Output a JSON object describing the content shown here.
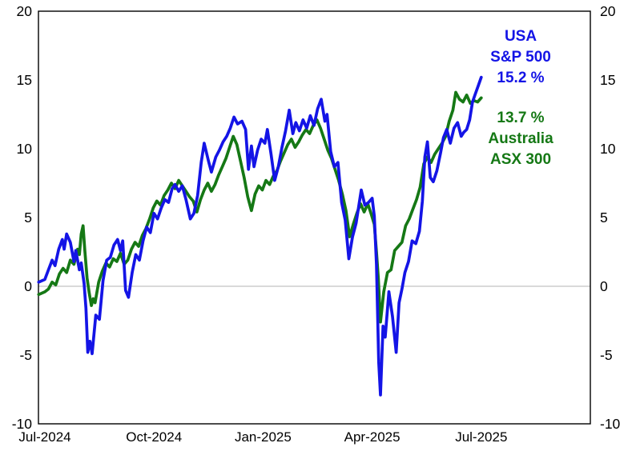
{
  "window": {
    "background": "#ffffff"
  },
  "chart_data": {
    "type": "line",
    "title": "",
    "x_axis": {
      "tick_labels": [
        "Jul-2024",
        "Oct-2024",
        "Jan-2025",
        "Apr-2025",
        "Jul-2025"
      ],
      "tick_positions_months": [
        0,
        3,
        6,
        9,
        12
      ],
      "range_months": [
        -0.18,
        15.0
      ],
      "grid": false
    },
    "y_axis": {
      "min": -10,
      "max": 20,
      "ticks": [
        20,
        15,
        10,
        5,
        0,
        -5,
        -10
      ],
      "sides": [
        "left",
        "right"
      ],
      "unit": "%",
      "zero_line_color": "#d9d9d9"
    },
    "legend_position": "top-right-inside",
    "legend": {
      "usa_line1": "USA",
      "usa_line2": "S&P 500",
      "usa_value": "15.2 %",
      "aus_value": "13.7 %",
      "aus_line1": "Australia",
      "aus_line2": "ASX 300"
    },
    "series": [
      {
        "name": "USA S&P 500",
        "color": "#1414e6",
        "final_value_pct": 15.2,
        "points": [
          [
            -0.17,
            0.3
          ],
          [
            0.0,
            0.5
          ],
          [
            0.1,
            1.2
          ],
          [
            0.2,
            1.9
          ],
          [
            0.28,
            1.5
          ],
          [
            0.38,
            2.7
          ],
          [
            0.48,
            3.4
          ],
          [
            0.53,
            2.7
          ],
          [
            0.6,
            3.8
          ],
          [
            0.7,
            3.2
          ],
          [
            0.8,
            1.8
          ],
          [
            0.85,
            2.6
          ],
          [
            0.95,
            1.2
          ],
          [
            1.0,
            1.7
          ],
          [
            1.08,
            0.2
          ],
          [
            1.13,
            -1.6
          ],
          [
            1.18,
            -4.8
          ],
          [
            1.24,
            -4.0
          ],
          [
            1.3,
            -4.9
          ],
          [
            1.4,
            -2.1
          ],
          [
            1.5,
            -2.4
          ],
          [
            1.6,
            0.4
          ],
          [
            1.7,
            1.9
          ],
          [
            1.8,
            2.1
          ],
          [
            1.9,
            3.0
          ],
          [
            2.0,
            3.4
          ],
          [
            2.08,
            2.6
          ],
          [
            2.14,
            3.3
          ],
          [
            2.22,
            -0.3
          ],
          [
            2.3,
            -0.8
          ],
          [
            2.4,
            1.0
          ],
          [
            2.5,
            2.3
          ],
          [
            2.6,
            1.9
          ],
          [
            2.7,
            3.3
          ],
          [
            2.8,
            4.3
          ],
          [
            2.9,
            3.9
          ],
          [
            3.0,
            5.3
          ],
          [
            3.1,
            4.9
          ],
          [
            3.2,
            5.7
          ],
          [
            3.3,
            6.3
          ],
          [
            3.4,
            6.1
          ],
          [
            3.5,
            7.1
          ],
          [
            3.58,
            7.4
          ],
          [
            3.68,
            6.9
          ],
          [
            3.78,
            7.3
          ],
          [
            3.88,
            6.3
          ],
          [
            4.0,
            4.9
          ],
          [
            4.1,
            5.3
          ],
          [
            4.2,
            6.6
          ],
          [
            4.3,
            9.0
          ],
          [
            4.38,
            10.4
          ],
          [
            4.5,
            9.1
          ],
          [
            4.58,
            8.3
          ],
          [
            4.7,
            9.4
          ],
          [
            4.8,
            9.9
          ],
          [
            4.9,
            10.5
          ],
          [
            5.0,
            10.9
          ],
          [
            5.1,
            11.5
          ],
          [
            5.2,
            12.3
          ],
          [
            5.3,
            11.8
          ],
          [
            5.42,
            12.0
          ],
          [
            5.52,
            11.4
          ],
          [
            5.6,
            8.5
          ],
          [
            5.68,
            10.2
          ],
          [
            5.75,
            8.7
          ],
          [
            5.85,
            9.9
          ],
          [
            5.95,
            10.7
          ],
          [
            6.05,
            10.4
          ],
          [
            6.12,
            11.4
          ],
          [
            6.22,
            9.6
          ],
          [
            6.32,
            7.7
          ],
          [
            6.42,
            8.7
          ],
          [
            6.52,
            10.1
          ],
          [
            6.62,
            11.3
          ],
          [
            6.72,
            12.8
          ],
          [
            6.82,
            11.1
          ],
          [
            6.9,
            11.9
          ],
          [
            7.0,
            11.3
          ],
          [
            7.1,
            12.1
          ],
          [
            7.2,
            11.5
          ],
          [
            7.3,
            12.4
          ],
          [
            7.4,
            11.7
          ],
          [
            7.5,
            12.9
          ],
          [
            7.6,
            13.6
          ],
          [
            7.7,
            12.0
          ],
          [
            7.76,
            12.5
          ],
          [
            7.86,
            9.8
          ],
          [
            7.96,
            8.7
          ],
          [
            8.06,
            9.0
          ],
          [
            8.16,
            6.1
          ],
          [
            8.26,
            4.8
          ],
          [
            8.36,
            2.0
          ],
          [
            8.46,
            3.6
          ],
          [
            8.56,
            4.6
          ],
          [
            8.7,
            7.0
          ],
          [
            8.8,
            5.9
          ],
          [
            8.9,
            6.1
          ],
          [
            9.0,
            6.4
          ],
          [
            9.06,
            5.1
          ],
          [
            9.12,
            1.6
          ],
          [
            9.18,
            -5.5
          ],
          [
            9.23,
            -7.9
          ],
          [
            9.3,
            -2.9
          ],
          [
            9.36,
            -3.7
          ],
          [
            9.46,
            -0.4
          ],
          [
            9.56,
            -2.2
          ],
          [
            9.66,
            -4.8
          ],
          [
            9.74,
            -1.2
          ],
          [
            9.82,
            -0.2
          ],
          [
            9.9,
            1.0
          ],
          [
            10.0,
            1.8
          ],
          [
            10.1,
            3.3
          ],
          [
            10.2,
            3.1
          ],
          [
            10.3,
            4.0
          ],
          [
            10.38,
            6.2
          ],
          [
            10.45,
            9.4
          ],
          [
            10.52,
            10.5
          ],
          [
            10.6,
            7.9
          ],
          [
            10.68,
            7.6
          ],
          [
            10.78,
            8.4
          ],
          [
            10.88,
            9.7
          ],
          [
            10.96,
            10.8
          ],
          [
            11.05,
            11.4
          ],
          [
            11.15,
            10.4
          ],
          [
            11.25,
            11.5
          ],
          [
            11.35,
            11.9
          ],
          [
            11.45,
            10.9
          ],
          [
            11.52,
            11.2
          ],
          [
            11.6,
            11.4
          ],
          [
            11.68,
            12.1
          ],
          [
            11.76,
            13.4
          ],
          [
            11.84,
            14.0
          ],
          [
            11.92,
            14.6
          ],
          [
            12.0,
            15.2
          ]
        ]
      },
      {
        "name": "Australia ASX 300",
        "color": "#157815",
        "final_value_pct": 13.7,
        "points": [
          [
            -0.17,
            -0.6
          ],
          [
            0.0,
            -0.4
          ],
          [
            0.1,
            -0.2
          ],
          [
            0.2,
            0.3
          ],
          [
            0.3,
            0.1
          ],
          [
            0.4,
            0.9
          ],
          [
            0.5,
            1.3
          ],
          [
            0.6,
            1.0
          ],
          [
            0.7,
            1.9
          ],
          [
            0.8,
            1.6
          ],
          [
            0.9,
            2.7
          ],
          [
            0.95,
            2.3
          ],
          [
            1.0,
            3.8
          ],
          [
            1.05,
            4.4
          ],
          [
            1.1,
            2.6
          ],
          [
            1.16,
            0.6
          ],
          [
            1.22,
            -0.5
          ],
          [
            1.28,
            -1.4
          ],
          [
            1.33,
            -0.9
          ],
          [
            1.38,
            -1.2
          ],
          [
            1.48,
            0.3
          ],
          [
            1.58,
            1.1
          ],
          [
            1.68,
            1.7
          ],
          [
            1.78,
            1.4
          ],
          [
            1.88,
            2.0
          ],
          [
            1.98,
            1.8
          ],
          [
            2.08,
            2.4
          ],
          [
            2.18,
            1.6
          ],
          [
            2.28,
            1.9
          ],
          [
            2.38,
            2.7
          ],
          [
            2.48,
            3.2
          ],
          [
            2.58,
            2.9
          ],
          [
            2.68,
            3.7
          ],
          [
            2.78,
            4.2
          ],
          [
            2.88,
            4.9
          ],
          [
            2.98,
            5.7
          ],
          [
            3.08,
            6.2
          ],
          [
            3.18,
            5.9
          ],
          [
            3.28,
            6.6
          ],
          [
            3.38,
            7.0
          ],
          [
            3.48,
            7.5
          ],
          [
            3.58,
            7.1
          ],
          [
            3.68,
            7.7
          ],
          [
            3.78,
            7.3
          ],
          [
            3.88,
            6.9
          ],
          [
            3.98,
            6.5
          ],
          [
            4.08,
            6.2
          ],
          [
            4.18,
            5.4
          ],
          [
            4.28,
            6.3
          ],
          [
            4.38,
            7.0
          ],
          [
            4.48,
            7.5
          ],
          [
            4.58,
            6.9
          ],
          [
            4.68,
            7.4
          ],
          [
            4.78,
            8.1
          ],
          [
            4.88,
            8.7
          ],
          [
            4.98,
            9.3
          ],
          [
            5.08,
            10.1
          ],
          [
            5.18,
            10.9
          ],
          [
            5.28,
            10.3
          ],
          [
            5.38,
            9.1
          ],
          [
            5.48,
            7.9
          ],
          [
            5.58,
            6.5
          ],
          [
            5.68,
            5.5
          ],
          [
            5.78,
            6.7
          ],
          [
            5.88,
            7.3
          ],
          [
            5.98,
            7.0
          ],
          [
            6.08,
            7.7
          ],
          [
            6.18,
            7.4
          ],
          [
            6.28,
            8.0
          ],
          [
            6.38,
            8.4
          ],
          [
            6.48,
            9.1
          ],
          [
            6.58,
            9.7
          ],
          [
            6.68,
            10.3
          ],
          [
            6.78,
            10.7
          ],
          [
            6.88,
            10.1
          ],
          [
            6.98,
            10.5
          ],
          [
            7.08,
            11.0
          ],
          [
            7.18,
            11.4
          ],
          [
            7.28,
            11.1
          ],
          [
            7.38,
            11.7
          ],
          [
            7.48,
            12.1
          ],
          [
            7.58,
            11.5
          ],
          [
            7.68,
            10.7
          ],
          [
            7.78,
            9.9
          ],
          [
            7.88,
            9.3
          ],
          [
            7.98,
            8.5
          ],
          [
            8.08,
            7.7
          ],
          [
            8.18,
            6.7
          ],
          [
            8.28,
            5.5
          ],
          [
            8.38,
            3.6
          ],
          [
            8.48,
            4.5
          ],
          [
            8.58,
            5.3
          ],
          [
            8.68,
            6.0
          ],
          [
            8.78,
            5.4
          ],
          [
            8.88,
            6.0
          ],
          [
            8.98,
            5.2
          ],
          [
            9.06,
            4.5
          ],
          [
            9.12,
            2.5
          ],
          [
            9.17,
            0.6
          ],
          [
            9.23,
            -2.6
          ],
          [
            9.32,
            -0.4
          ],
          [
            9.42,
            1.0
          ],
          [
            9.52,
            1.2
          ],
          [
            9.62,
            2.6
          ],
          [
            9.72,
            2.9
          ],
          [
            9.82,
            3.2
          ],
          [
            9.92,
            4.4
          ],
          [
            10.02,
            4.9
          ],
          [
            10.12,
            5.6
          ],
          [
            10.22,
            6.3
          ],
          [
            10.32,
            7.2
          ],
          [
            10.42,
            8.9
          ],
          [
            10.52,
            9.4
          ],
          [
            10.62,
            9.0
          ],
          [
            10.72,
            9.6
          ],
          [
            10.82,
            10.0
          ],
          [
            10.92,
            10.4
          ],
          [
            11.02,
            10.9
          ],
          [
            11.12,
            12.0
          ],
          [
            11.22,
            12.8
          ],
          [
            11.3,
            14.1
          ],
          [
            11.4,
            13.6
          ],
          [
            11.5,
            13.4
          ],
          [
            11.6,
            13.9
          ],
          [
            11.7,
            13.3
          ],
          [
            11.8,
            13.5
          ],
          [
            11.9,
            13.4
          ],
          [
            12.0,
            13.7
          ]
        ]
      }
    ]
  }
}
